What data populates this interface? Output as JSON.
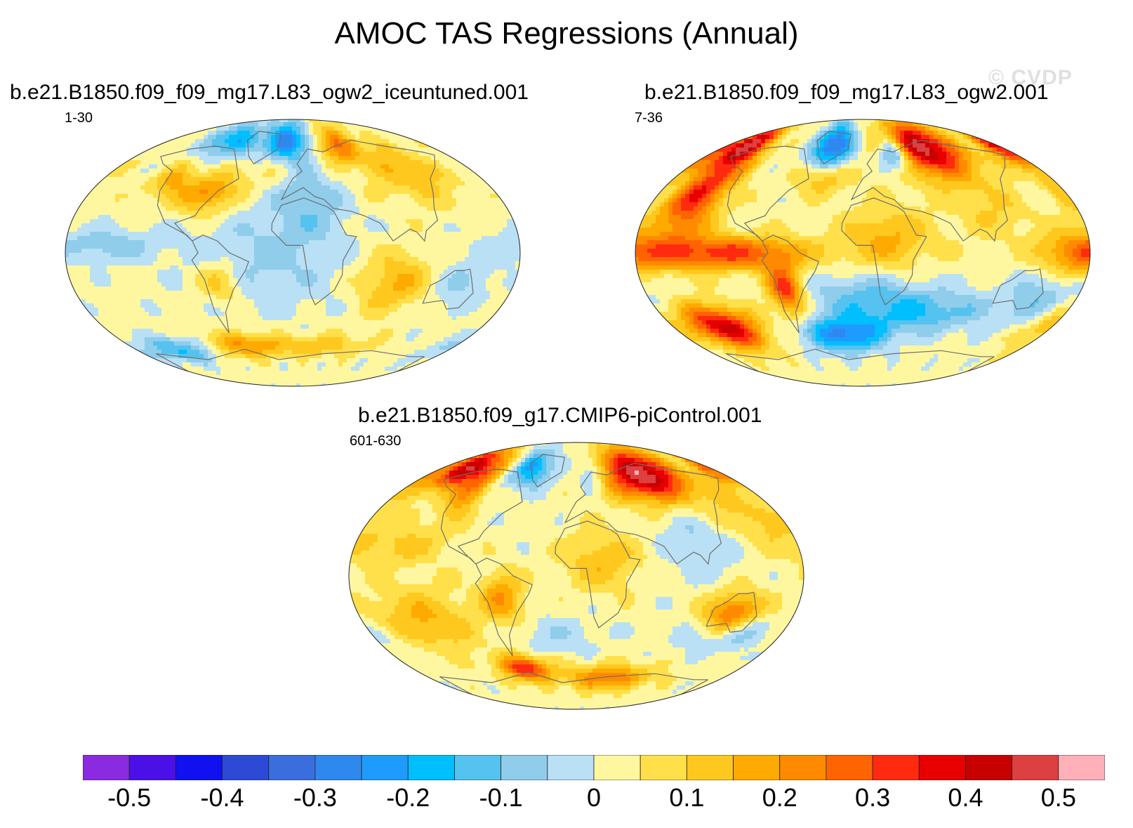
{
  "chart_data": {
    "type": "heatmap",
    "title": "AMOC TAS Regressions (Annual)",
    "watermark": "© CVDP",
    "projection": "Robinson-like global map",
    "panels": [
      {
        "name": "panel-iceuntuned",
        "title": "b.e21.B1850.f09_f09_mg17.L83_ogw2_iceuntuned.001",
        "years": "1-30"
      },
      {
        "name": "panel-ogw2",
        "title": "b.e21.B1850.f09_f09_mg17.L83_ogw2.001",
        "years": "7-36"
      },
      {
        "name": "panel-picontrol",
        "title": "b.e21.B1850.f09_g17.CMIP6-piControl.001",
        "years": "601-630"
      }
    ],
    "colorbar": {
      "levels": [
        -0.55,
        -0.5,
        -0.45,
        -0.4,
        -0.35,
        -0.3,
        -0.25,
        -0.2,
        -0.15,
        -0.1,
        -0.05,
        0,
        0.05,
        0.1,
        0.15,
        0.2,
        0.25,
        0.3,
        0.35,
        0.4,
        0.45,
        0.5,
        0.55
      ],
      "colors": [
        "#8a2be2",
        "#4b0fe8",
        "#1010f0",
        "#2c4ad6",
        "#3a6ede",
        "#2f88ee",
        "#1e9bff",
        "#00bfff",
        "#55c2f0",
        "#8fcdeb",
        "#b9e0f5",
        "#fff7a0",
        "#ffe04a",
        "#ffc81e",
        "#ffaa00",
        "#ff8a00",
        "#ff6400",
        "#ff2a10",
        "#e80000",
        "#c80000",
        "#dc4040",
        "#ffb0b8"
      ],
      "tick_values": [
        -0.5,
        -0.4,
        -0.3,
        -0.2,
        -0.1,
        0,
        0.1,
        0.2,
        0.3,
        0.4,
        0.5
      ],
      "tick_labels": [
        "-0.5",
        "-0.4",
        "-0.3",
        "-0.2",
        "-0.1",
        "0",
        "0.1",
        "0.2",
        "0.3",
        "0.4",
        "0.5"
      ]
    }
  }
}
